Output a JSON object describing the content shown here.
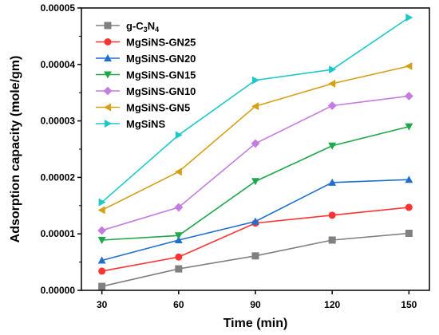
{
  "chart_data": {
    "type": "line",
    "xlabel": "Time (min)",
    "ylabel": "Adsorption capacity (mole/gm)",
    "x": [
      30,
      60,
      90,
      120,
      150
    ],
    "x_ticks": [
      "30",
      "60",
      "90",
      "120",
      "150"
    ],
    "xlim": [
      22,
      158
    ],
    "ylim": [
      0,
      5e-05
    ],
    "y_ticks": [
      0,
      1e-05,
      2e-05,
      3e-05,
      4e-05,
      5e-05
    ],
    "y_tick_labels": [
      "0.00000",
      "0.00001",
      "0.00002",
      "0.00003",
      "0.00004",
      "0.00005"
    ],
    "grid": false,
    "legend_position": "top-left",
    "series": [
      {
        "name": "g-C3N4",
        "label_parts": [
          [
            "g-C",
            false
          ],
          [
            "3",
            true
          ],
          [
            "N",
            false
          ],
          [
            "4",
            true
          ]
        ],
        "color": "#808080",
        "marker": "square",
        "values": [
          7e-07,
          3.8e-06,
          6.1e-06,
          8.9e-06,
          1.01e-05
        ]
      },
      {
        "name": "MgSiNS-GN25",
        "color": "#ff3333",
        "marker": "circle",
        "values": [
          3.4e-06,
          5.9e-06,
          1.19e-05,
          1.33e-05,
          1.47e-05
        ]
      },
      {
        "name": "MgSiNS-GN20",
        "color": "#1f6fd0",
        "marker": "triangle-up",
        "values": [
          5.3e-06,
          8.9e-06,
          1.22e-05,
          1.91e-05,
          1.96e-05
        ]
      },
      {
        "name": "MgSiNS-GN15",
        "color": "#1ea84a",
        "marker": "triangle-down",
        "values": [
          8.9e-06,
          9.7e-06,
          1.93e-05,
          2.56e-05,
          2.9e-05
        ]
      },
      {
        "name": "MgSiNS-GN10",
        "color": "#c47ce0",
        "marker": "diamond",
        "values": [
          1.06e-05,
          1.47e-05,
          2.6e-05,
          3.27e-05,
          3.44e-05
        ]
      },
      {
        "name": "MgSiNS-GN5",
        "color": "#d4a017",
        "marker": "triangle-left",
        "values": [
          1.42e-05,
          2.1e-05,
          3.26e-05,
          3.66e-05,
          3.97e-05
        ]
      },
      {
        "name": "MgSiNS",
        "color": "#1ec8c8",
        "marker": "triangle-right",
        "values": [
          1.56e-05,
          2.75e-05,
          3.72e-05,
          3.91e-05,
          4.83e-05
        ]
      }
    ]
  }
}
